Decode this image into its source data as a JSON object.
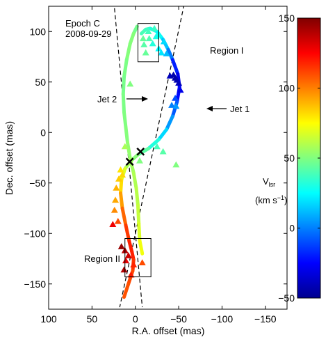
{
  "chart_data": {
    "type": "scatter",
    "epoch_label": "Epoch C",
    "date_label": "2008-09-29",
    "xlabel": "R.A. offset (mas)",
    "ylabel": "Dec. offset (mas)",
    "xlim": [
      100,
      -175
    ],
    "ylim": [
      -175,
      125
    ],
    "x_reversed": true,
    "xticks": [
      100,
      50,
      0,
      -50,
      -100,
      -150
    ],
    "xtick_labels": [
      "100",
      "50",
      "0",
      "−50",
      "−100",
      "−150"
    ],
    "yticks": [
      100,
      50,
      0,
      -50,
      -100,
      -150
    ],
    "ytick_labels": [
      "100",
      "50",
      "0",
      "−50",
      "−100",
      "−150"
    ],
    "colorbar": {
      "label_main": "V",
      "label_sub": "lsr",
      "units_prefix": "(km s",
      "units_exp": "−1",
      "units_suffix": ")",
      "min": -50,
      "max": 150,
      "ticks": [
        150,
        100,
        50,
        0,
        -50
      ],
      "tick_labels": [
        "150",
        "100",
        "50",
        "0",
        "−50"
      ]
    },
    "annotations": {
      "region1": "Region I",
      "region2": "Region II",
      "jet1": "Jet 1",
      "jet2": "Jet 2"
    },
    "regions": [
      {
        "name": "Region I",
        "x": [
          -3,
          -27
        ],
        "y": [
          70,
          108
        ]
      },
      {
        "name": "Region II",
        "x": [
          12,
          -18
        ],
        "y": [
          -143,
          -105
        ]
      }
    ],
    "jet_cone_lines": [
      {
        "x1": 30,
        "y1": 178,
        "x2": -8,
        "y2": -173
      },
      {
        "x1": -68,
        "y1": 174,
        "x2": 18,
        "y2": -173
      }
    ],
    "crossings": [
      {
        "x": 6.5,
        "y": -29
      },
      {
        "x": -6,
        "y": -19
      }
    ],
    "jet1_model": [
      {
        "x": -7,
        "y": 98,
        "v": 40
      },
      {
        "x": -12,
        "y": 102,
        "v": 38
      },
      {
        "x": -17,
        "y": 103,
        "v": 36
      },
      {
        "x": -25,
        "y": 100,
        "v": 28
      },
      {
        "x": -32,
        "y": 92,
        "v": 18
      },
      {
        "x": -38,
        "y": 82,
        "v": 8
      },
      {
        "x": -43,
        "y": 72,
        "v": -10
      },
      {
        "x": -49,
        "y": 58,
        "v": -28
      },
      {
        "x": -51,
        "y": 45,
        "v": -32
      },
      {
        "x": -48,
        "y": 30,
        "v": -15
      },
      {
        "x": -43,
        "y": 16,
        "v": 0
      },
      {
        "x": -36,
        "y": 3,
        "v": 10
      },
      {
        "x": -27,
        "y": -7,
        "v": 25
      },
      {
        "x": -15,
        "y": -16,
        "v": 38
      },
      {
        "x": -3,
        "y": -22,
        "v": 48
      },
      {
        "x": 5,
        "y": -28,
        "v": 55
      },
      {
        "x": 12,
        "y": -36,
        "v": 62
      },
      {
        "x": 16,
        "y": -47,
        "v": 75
      },
      {
        "x": 17,
        "y": -60,
        "v": 88
      },
      {
        "x": 15,
        "y": -75,
        "v": 100
      },
      {
        "x": 11,
        "y": -92,
        "v": 110
      },
      {
        "x": 7,
        "y": -108,
        "v": 118
      },
      {
        "x": 4,
        "y": -118,
        "v": 120
      },
      {
        "x": 2,
        "y": -126,
        "v": 118
      },
      {
        "x": 3,
        "y": -137,
        "v": 112
      },
      {
        "x": 8,
        "y": -150,
        "v": 110
      },
      {
        "x": 13,
        "y": -163,
        "v": 108
      }
    ],
    "jet2_model": [
      {
        "x": -2,
        "y": 105,
        "v": 45
      },
      {
        "x": 2,
        "y": 98,
        "v": 50
      },
      {
        "x": 6,
        "y": 88,
        "v": 52
      },
      {
        "x": 10,
        "y": 72,
        "v": 50
      },
      {
        "x": 13,
        "y": 55,
        "v": 48
      },
      {
        "x": 14,
        "y": 38,
        "v": 48
      },
      {
        "x": 13,
        "y": 20,
        "v": 50
      },
      {
        "x": 11,
        "y": 5,
        "v": 50
      },
      {
        "x": 9,
        "y": -10,
        "v": 52
      },
      {
        "x": 6,
        "y": -26,
        "v": 55
      },
      {
        "x": 2,
        "y": -40,
        "v": 58
      },
      {
        "x": -1,
        "y": -55,
        "v": 60
      },
      {
        "x": -3,
        "y": -72,
        "v": 62
      },
      {
        "x": -4,
        "y": -90,
        "v": 65
      },
      {
        "x": -5,
        "y": -107,
        "v": 70
      },
      {
        "x": -8,
        "y": -120,
        "v": 75
      }
    ],
    "masers": [
      {
        "x": -9,
        "y": 93,
        "v": 45
      },
      {
        "x": -16,
        "y": 93,
        "v": 40
      },
      {
        "x": -22,
        "y": 103,
        "v": 36
      },
      {
        "x": -24,
        "y": 95,
        "v": 30
      },
      {
        "x": -15,
        "y": 100,
        "v": 38
      },
      {
        "x": -10,
        "y": 87,
        "v": 42
      },
      {
        "x": -20,
        "y": 88,
        "v": 32
      },
      {
        "x": -27,
        "y": 83,
        "v": 25
      },
      {
        "x": -30,
        "y": 79,
        "v": 20
      },
      {
        "x": -33,
        "y": 90,
        "v": 18
      },
      {
        "x": -27,
        "y": 97,
        "v": 28
      },
      {
        "x": -12,
        "y": 79,
        "v": 45
      },
      {
        "x": -36,
        "y": 78,
        "v": 12
      },
      {
        "x": -40,
        "y": 56,
        "v": -40
      },
      {
        "x": -44,
        "y": 57,
        "v": -43
      },
      {
        "x": -46,
        "y": 54,
        "v": -45
      },
      {
        "x": -48,
        "y": 52,
        "v": -42
      },
      {
        "x": -50,
        "y": 49,
        "v": -40
      },
      {
        "x": -52,
        "y": 42,
        "v": -30
      },
      {
        "x": -46,
        "y": 34,
        "v": -10
      },
      {
        "x": -42,
        "y": 27,
        "v": 0
      },
      {
        "x": -47,
        "y": 26,
        "v": 5
      },
      {
        "x": 6,
        "y": 48,
        "v": 50
      },
      {
        "x": 12,
        "y": -14,
        "v": 58
      },
      {
        "x": -25,
        "y": -14,
        "v": 38
      },
      {
        "x": -32,
        "y": -19,
        "v": 42
      },
      {
        "x": -47,
        "y": -32,
        "v": 50
      },
      {
        "x": -5,
        "y": -28,
        "v": 50
      },
      {
        "x": 17,
        "y": -37,
        "v": 80
      },
      {
        "x": 15,
        "y": -42,
        "v": 82
      },
      {
        "x": 19,
        "y": -46,
        "v": 85
      },
      {
        "x": 22,
        "y": -55,
        "v": 90
      },
      {
        "x": 23,
        "y": -67,
        "v": 92
      },
      {
        "x": 24,
        "y": -77,
        "v": 98
      },
      {
        "x": 26,
        "y": -91,
        "v": 128
      },
      {
        "x": 20,
        "y": -88,
        "v": 110
      },
      {
        "x": 16,
        "y": -113,
        "v": 145
      },
      {
        "x": 12,
        "y": -117,
        "v": 140
      },
      {
        "x": 8,
        "y": -122,
        "v": 135
      },
      {
        "x": 11,
        "y": -127,
        "v": 130
      },
      {
        "x": 13,
        "y": -136,
        "v": 140
      },
      {
        "x": 5,
        "y": -141,
        "v": 120
      },
      {
        "x": 2,
        "y": -131,
        "v": 118
      },
      {
        "x": -8,
        "y": -129,
        "v": 110
      }
    ]
  }
}
